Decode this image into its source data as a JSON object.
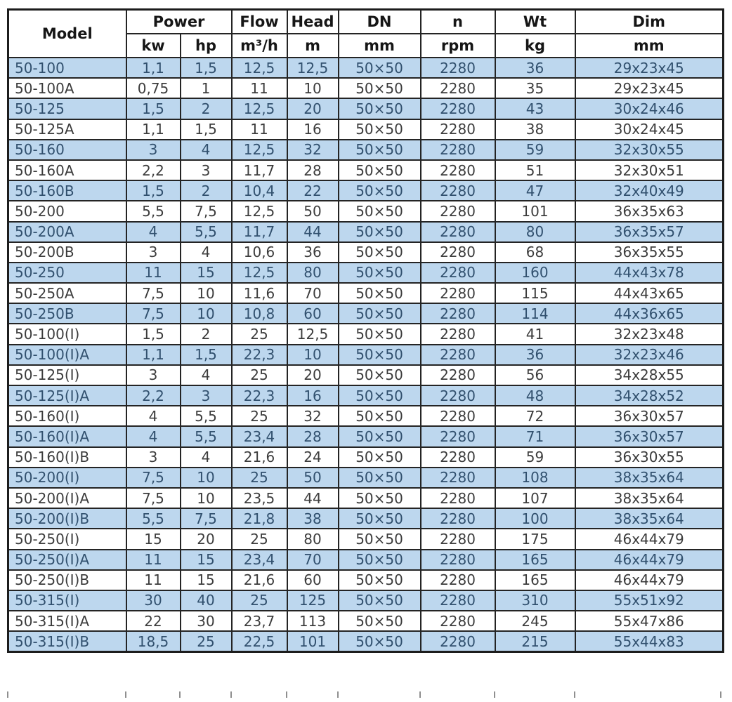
{
  "table": {
    "header": {
      "model": "Model",
      "power": "Power",
      "flow": "Flow",
      "head": "Head",
      "dn": "DN",
      "n": "n",
      "wt": "Wt",
      "dim": "Dim",
      "units": {
        "kw": "kw",
        "hp": "hp",
        "flow": "m³/h",
        "head": "m",
        "dn": "mm",
        "n": "rpm",
        "wt": "kg",
        "dim": "mm"
      }
    },
    "columns": [
      "model",
      "kw",
      "hp",
      "flow",
      "head",
      "dn",
      "n",
      "wt",
      "dim"
    ],
    "rows": [
      [
        "50-100",
        "1,1",
        "1,5",
        "12,5",
        "12,5",
        "50×50",
        "2280",
        "36",
        "29x23x45"
      ],
      [
        "50-100A",
        "0,75",
        "1",
        "11",
        "10",
        "50×50",
        "2280",
        "35",
        "29x23x45"
      ],
      [
        "50-125",
        "1,5",
        "2",
        "12,5",
        "20",
        "50×50",
        "2280",
        "43",
        "30x24x46"
      ],
      [
        "50-125A",
        "1,1",
        "1,5",
        "11",
        "16",
        "50×50",
        "2280",
        "38",
        "30x24x45"
      ],
      [
        "50-160",
        "3",
        "4",
        "12,5",
        "32",
        "50×50",
        "2280",
        "59",
        "32x30x55"
      ],
      [
        "50-160A",
        "2,2",
        "3",
        "11,7",
        "28",
        "50×50",
        "2280",
        "51",
        "32x30x51"
      ],
      [
        "50-160B",
        "1,5",
        "2",
        "10,4",
        "22",
        "50×50",
        "2280",
        "47",
        "32x40x49"
      ],
      [
        "50-200",
        "5,5",
        "7,5",
        "12,5",
        "50",
        "50×50",
        "2280",
        "101",
        "36x35x63"
      ],
      [
        "50-200A",
        "4",
        "5,5",
        "11,7",
        "44",
        "50×50",
        "2280",
        "80",
        "36x35x57"
      ],
      [
        "50-200B",
        "3",
        "4",
        "10,6",
        "36",
        "50×50",
        "2280",
        "68",
        "36x35x55"
      ],
      [
        "50-250",
        "11",
        "15",
        "12,5",
        "80",
        "50×50",
        "2280",
        "160",
        "44x43x78"
      ],
      [
        "50-250A",
        "7,5",
        "10",
        "11,6",
        "70",
        "50×50",
        "2280",
        "115",
        "44x43x65"
      ],
      [
        "50-250B",
        "7,5",
        "10",
        "10,8",
        "60",
        "50×50",
        "2280",
        "114",
        "44x36x65"
      ],
      [
        "50-100(I)",
        "1,5",
        "2",
        "25",
        "12,5",
        "50×50",
        "2280",
        "41",
        "32x23x48"
      ],
      [
        "50-100(I)A",
        "1,1",
        "1,5",
        "22,3",
        "10",
        "50×50",
        "2280",
        "36",
        "32x23x46"
      ],
      [
        "50-125(I)",
        "3",
        "4",
        "25",
        "20",
        "50×50",
        "2280",
        "56",
        "34x28x55"
      ],
      [
        "50-125(I)A",
        "2,2",
        "3",
        "22,3",
        "16",
        "50×50",
        "2280",
        "48",
        "34x28x52"
      ],
      [
        "50-160(I)",
        "4",
        "5,5",
        "25",
        "32",
        "50×50",
        "2280",
        "72",
        "36x30x57"
      ],
      [
        "50-160(I)A",
        "4",
        "5,5",
        "23,4",
        "28",
        "50×50",
        "2280",
        "71",
        "36x30x57"
      ],
      [
        "50-160(I)B",
        "3",
        "4",
        "21,6",
        "24",
        "50×50",
        "2280",
        "59",
        "36x30x55"
      ],
      [
        "50-200(I)",
        "7,5",
        "10",
        "25",
        "50",
        "50×50",
        "2280",
        "108",
        "38x35x64"
      ],
      [
        "50-200(I)A",
        "7,5",
        "10",
        "23,5",
        "44",
        "50×50",
        "2280",
        "107",
        "38x35x64"
      ],
      [
        "50-200(I)B",
        "5,5",
        "7,5",
        "21,8",
        "38",
        "50×50",
        "2280",
        "100",
        "38x35x64"
      ],
      [
        "50-250(I)",
        "15",
        "20",
        "25",
        "80",
        "50×50",
        "2280",
        "175",
        "46x44x79"
      ],
      [
        "50-250(I)A",
        "11",
        "15",
        "23,4",
        "70",
        "50×50",
        "2280",
        "165",
        "46x44x79"
      ],
      [
        "50-250(I)B",
        "11",
        "15",
        "21,6",
        "60",
        "50×50",
        "2280",
        "165",
        "46x44x79"
      ],
      [
        "50-315(I)",
        "30",
        "40",
        "25",
        "125",
        "50×50",
        "2280",
        "310",
        "55x51x92"
      ],
      [
        "50-315(I)A",
        "22",
        "30",
        "23,7",
        "113",
        "50×50",
        "2280",
        "245",
        "55x47x86"
      ],
      [
        "50-315(I)B",
        "18,5",
        "25",
        "22,5",
        "101",
        "50×50",
        "2280",
        "215",
        "55x44x83"
      ]
    ]
  },
  "colors": {
    "row_alt_background": "#bdd7ee",
    "row_alt_text": "#31506e",
    "row_text": "#3c3c3c",
    "header_text": "#161616",
    "border": "#242424"
  },
  "layout_stub_offsets": [
    0,
    168,
    245,
    318,
    397,
    470,
    587,
    693,
    807,
    1015
  ]
}
